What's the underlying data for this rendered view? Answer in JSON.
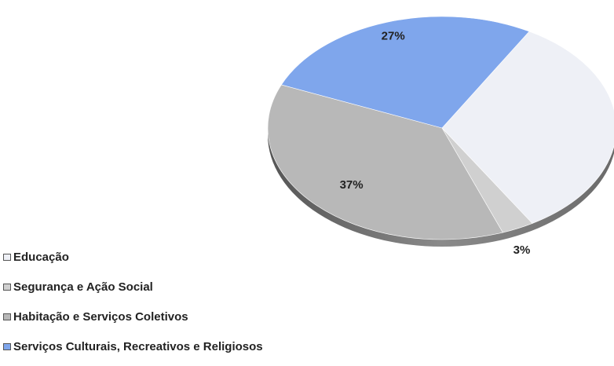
{
  "chart_data": {
    "type": "pie",
    "title": "",
    "legend_position": "bottom-left",
    "slices": [
      {
        "label": "Educação",
        "value": 33,
        "value_label": "33%",
        "color": "#eef0f6"
      },
      {
        "label": "Segurança e Ação Social",
        "value": 3,
        "value_label": "3%",
        "color": "#d0d0d0"
      },
      {
        "label": "Habitação e Serviços Coletivos",
        "value": 37,
        "value_label": "37%",
        "color": "#b8b8b8"
      },
      {
        "label": "Serviços Culturais, Recreativos e Religiosos",
        "value": 27,
        "value_label": "27%",
        "color": "#7fa6ec"
      }
    ]
  }
}
